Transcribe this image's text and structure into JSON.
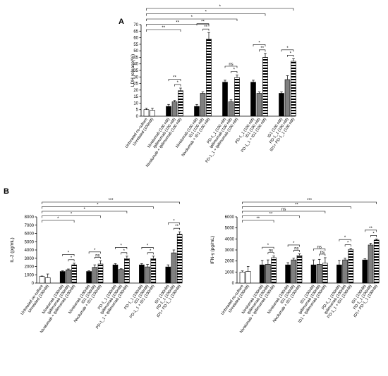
{
  "colors": {
    "black": "#000000",
    "gray": "#7f7f7f",
    "white": "#ffffff",
    "stripe": "#000000"
  },
  "chart_data": [
    {
      "type": "bar",
      "panel_label": "A",
      "ylabel": "LDH release(%)",
      "ylim": [
        0,
        70
      ],
      "yticks": [
        0,
        5,
        10,
        15,
        20,
        25,
        30,
        35,
        40,
        45,
        50,
        55,
        60,
        65,
        70
      ],
      "groups": [
        {
          "fills": [
            "white",
            "white"
          ],
          "labels": [
            "Untreated co-culture",
            "Unrelated (100nM)"
          ],
          "values": [
            5,
            4.5
          ],
          "errors": [
            1,
            1.5
          ]
        },
        {
          "fills": [
            "black",
            "gray",
            "stripe"
          ],
          "labels": [
            "Nivolumab (100 nM)",
            "Ipilimumab (100 nM)",
            "Nivolumab + Ipilimumab (100 nM)"
          ],
          "values": [
            7.5,
            11,
            19.5
          ],
          "errors": [
            1.5,
            1,
            2
          ]
        },
        {
          "fills": [
            "black",
            "gray",
            "stripe"
          ],
          "labels": [
            "Nivolumab (100 nM)",
            "ID1 (100 nM)",
            "Nivolumab + ID1 (100 nM)"
          ],
          "values": [
            7.5,
            17.5,
            59
          ],
          "errors": [
            1.5,
            1,
            5
          ]
        },
        {
          "fills": [
            "black",
            "gray",
            "stripe"
          ],
          "labels": [
            "PD-1_1 (100 nM)",
            "Ipilimumab (100 nM)",
            "PD-1_1 + Ipilimumab (100 nM)"
          ],
          "values": [
            26,
            11,
            29.5
          ],
          "errors": [
            1.5,
            1.5,
            2
          ]
        },
        {
          "fills": [
            "black",
            "gray",
            "stripe"
          ],
          "labels": [
            "PD-1_1 (100 nM)",
            "ID1 (100 nM)",
            "PD-1_1 + ID1 (100 nM)"
          ],
          "values": [
            26,
            17.5,
            45
          ],
          "errors": [
            1.5,
            1,
            3
          ]
        },
        {
          "fills": [
            "black",
            "gray",
            "stripe"
          ],
          "labels": [
            "ID1 (100 nM)",
            "PD-1_1 (100 nM)",
            "ID1+ PD-1_1 (100 nM)"
          ],
          "values": [
            17.5,
            28,
            42
          ],
          "errors": [
            1,
            3,
            2
          ]
        }
      ],
      "significance": [
        {
          "from": "0.0",
          "to": "5.2",
          "label": "*"
        },
        {
          "from": "0.0",
          "to": "4.2",
          "label": "*"
        },
        {
          "from": "0.0",
          "to": "3.2",
          "label": "*"
        },
        {
          "from": "0.0",
          "to": "2.2",
          "label": "**"
        },
        {
          "from": "0.0",
          "to": "1.2",
          "label": "**"
        },
        {
          "from": "1.0",
          "to": "1.2",
          "label": "**"
        },
        {
          "from": "1.1",
          "to": "1.2",
          "label": "*"
        },
        {
          "from": "2.0",
          "to": "2.2",
          "label": "**"
        },
        {
          "from": "2.1",
          "to": "2.2",
          "label": "**"
        },
        {
          "from": "3.0",
          "to": "3.2",
          "label": "ns"
        },
        {
          "from": "3.1",
          "to": "3.2",
          "label": "*"
        },
        {
          "from": "4.0",
          "to": "4.2",
          "label": "*"
        },
        {
          "from": "4.1",
          "to": "4.2",
          "label": "**"
        },
        {
          "from": "5.0",
          "to": "5.2",
          "label": "*"
        },
        {
          "from": "5.1",
          "to": "5.2",
          "label": "*"
        }
      ]
    },
    {
      "type": "bar",
      "panel_label": "B",
      "ylabel": "IL-2 (pg/mL)",
      "ylim": [
        0,
        8000
      ],
      "yticks": [
        0,
        1000,
        2000,
        3000,
        4000,
        5000,
        6000,
        7000,
        8000
      ],
      "groups": [
        {
          "fills": [
            "white",
            "white"
          ],
          "labels": [
            "Untreated co-culture",
            "Unrelated (100nM)"
          ],
          "values": [
            800,
            650
          ],
          "errors": [
            50,
            450
          ]
        },
        {
          "fills": [
            "black",
            "gray",
            "stripe"
          ],
          "labels": [
            "Nivolumab (100nM)",
            "Ipilimumab (100nM)",
            "Nivolumab + Ipilimumab (100nM)"
          ],
          "values": [
            1400,
            1600,
            2200
          ],
          "errors": [
            80,
            100,
            200
          ]
        },
        {
          "fills": [
            "black",
            "gray",
            "stripe"
          ],
          "labels": [
            "Nivolumab (100nM)",
            "ID1 (100nM)",
            "Nivolumab + ID1 (100nM)"
          ],
          "values": [
            1400,
            1900,
            2300
          ],
          "errors": [
            80,
            300,
            400
          ]
        },
        {
          "fills": [
            "black",
            "gray",
            "stripe"
          ],
          "labels": [
            "PD-1_1 (100nM)",
            "Ipilimumab (100nM)",
            "PD-1_1 + Ipilimumab (100nM)"
          ],
          "values": [
            2200,
            1650,
            2950
          ],
          "errors": [
            150,
            80,
            300
          ]
        },
        {
          "fills": [
            "black",
            "gray",
            "stripe"
          ],
          "labels": [
            "PD-1_1 (100nM)",
            "ID1 (100nM)",
            "PD-1_1 + ID1 (100nM)"
          ],
          "values": [
            2200,
            1950,
            2950
          ],
          "errors": [
            150,
            300,
            300
          ]
        },
        {
          "fills": [
            "black",
            "gray",
            "stripe"
          ],
          "labels": [
            "ID1 (100nM)",
            "PD-1_1 (100nM)",
            "ID1+ PD-1_1 (100nM)"
          ],
          "values": [
            1950,
            3650,
            5900
          ],
          "errors": [
            250,
            350,
            300
          ]
        }
      ],
      "significance": [
        {
          "from": "0.0",
          "to": "5.2",
          "label": "***"
        },
        {
          "from": "0.0",
          "to": "4.2",
          "label": "*"
        },
        {
          "from": "0.0",
          "to": "3.2",
          "label": "*"
        },
        {
          "from": "0.0",
          "to": "2.2",
          "label": "*"
        },
        {
          "from": "0.0",
          "to": "1.2",
          "label": "*"
        },
        {
          "from": "1.0",
          "to": "1.2",
          "label": "*"
        },
        {
          "from": "1.1",
          "to": "1.2",
          "label": "*"
        },
        {
          "from": "2.0",
          "to": "2.2",
          "label": "*"
        },
        {
          "from": "2.1",
          "to": "2.2",
          "label": "ns"
        },
        {
          "from": "3.0",
          "to": "3.2",
          "label": "*"
        },
        {
          "from": "3.1",
          "to": "3.2",
          "label": "*"
        },
        {
          "from": "4.0",
          "to": "4.2",
          "label": "*"
        },
        {
          "from": "4.1",
          "to": "4.2",
          "label": "*"
        },
        {
          "from": "5.0",
          "to": "5.2",
          "label": "*"
        },
        {
          "from": "5.1",
          "to": "5.2",
          "label": "**"
        }
      ]
    },
    {
      "type": "bar",
      "panel_label": "",
      "ylabel": "IFN-γ (pg/mL)",
      "ylim": [
        0,
        6000
      ],
      "yticks": [
        0,
        1000,
        2000,
        3000,
        4000,
        5000,
        6000
      ],
      "groups": [
        {
          "fills": [
            "white",
            "white"
          ],
          "labels": [
            "Untreated co-culture",
            "Unrelated (100nM)"
          ],
          "values": [
            1000,
            1050
          ],
          "errors": [
            100,
            450
          ]
        },
        {
          "fills": [
            "black",
            "gray",
            "stripe"
          ],
          "labels": [
            "Nivolumab (100nM)",
            "Ipilimumab (100nM)",
            "Nivolumab + Ipilimumab (100nM)"
          ],
          "values": [
            1650,
            1700,
            2300
          ],
          "errors": [
            400,
            400,
            150
          ]
        },
        {
          "fills": [
            "black",
            "gray",
            "stripe"
          ],
          "labels": [
            "Nivolumab (100nM)",
            "ID1 (100nM)",
            "Nivolumab + ID1 (100nM)"
          ],
          "values": [
            1650,
            2100,
            2500
          ],
          "errors": [
            200,
            150,
            150
          ]
        },
        {
          "fills": [
            "black",
            "gray",
            "stripe"
          ],
          "labels": [
            "ID1 (100nM)",
            "Ipilimumab (100nM)",
            "ID1 + Ipilimumab (100nM)"
          ],
          "values": [
            1650,
            1700,
            1800
          ],
          "errors": [
            450,
            450,
            500
          ]
        },
        {
          "fills": [
            "black",
            "gray",
            "stripe"
          ],
          "labels": [
            "PD-1_1 (100nM)",
            "Ipilimumab (100nM)",
            "PD-1_1 + ID1 (100nM)"
          ],
          "values": [
            1650,
            2100,
            3050
          ],
          "errors": [
            400,
            150,
            100
          ]
        },
        {
          "fills": [
            "black",
            "gray",
            "stripe"
          ],
          "labels": [
            "ID1 (100nM)",
            "PD-1_1 (100nM)",
            "ID1+ PD-1_1 (100nM)"
          ],
          "values": [
            2100,
            3450,
            3900
          ],
          "errors": [
            100,
            150,
            100
          ]
        }
      ],
      "significance": [
        {
          "from": "0.0",
          "to": "5.2",
          "label": "***"
        },
        {
          "from": "0.0",
          "to": "4.2",
          "label": "**"
        },
        {
          "from": "0.0",
          "to": "3.2",
          "label": "ns"
        },
        {
          "from": "0.0",
          "to": "2.2",
          "label": "**"
        },
        {
          "from": "0.0",
          "to": "1.2",
          "label": "**"
        },
        {
          "from": "1.0",
          "to": "1.2",
          "label": "*"
        },
        {
          "from": "1.1",
          "to": "1.2",
          "label": "ns"
        },
        {
          "from": "2.0",
          "to": "2.2",
          "label": "*"
        },
        {
          "from": "2.1",
          "to": "2.2",
          "label": "ns"
        },
        {
          "from": "3.0",
          "to": "3.2",
          "label": "ns"
        },
        {
          "from": "3.1",
          "to": "3.2",
          "label": "ns"
        },
        {
          "from": "4.0",
          "to": "4.2",
          "label": "*"
        },
        {
          "from": "4.1",
          "to": "4.2",
          "label": "*"
        },
        {
          "from": "5.0",
          "to": "5.2",
          "label": "**"
        },
        {
          "from": "5.1",
          "to": "5.2",
          "label": "*"
        }
      ]
    }
  ]
}
